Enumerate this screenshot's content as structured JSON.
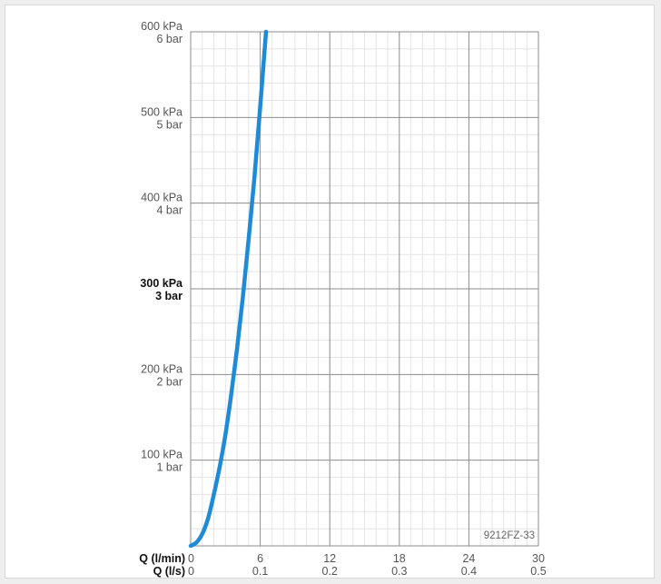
{
  "chart_data": {
    "type": "line",
    "code": "9212FZ-33",
    "y_ticks": [
      {
        "value": 100,
        "kpa": "100 kPa",
        "bar": "1 bar",
        "bold": false
      },
      {
        "value": 200,
        "kpa": "200 kPa",
        "bar": "2 bar",
        "bold": false
      },
      {
        "value": 300,
        "kpa": "300 kPa",
        "bar": "3 bar",
        "bold": true
      },
      {
        "value": 400,
        "kpa": "400 kPa",
        "bar": "4 bar",
        "bold": false
      },
      {
        "value": 500,
        "kpa": "500 kPa",
        "bar": "5 bar",
        "bold": false
      },
      {
        "value": 600,
        "kpa": "600 kPa",
        "bar": "6 bar",
        "bold": false
      }
    ],
    "x_axis_rows": [
      {
        "title": "Q (l/min)",
        "ticks": [
          {
            "value": 0,
            "label": "0"
          },
          {
            "value": 6,
            "label": "6"
          },
          {
            "value": 12,
            "label": "12"
          },
          {
            "value": 18,
            "label": "18"
          },
          {
            "value": 24,
            "label": "24"
          },
          {
            "value": 30,
            "label": "30"
          }
        ]
      },
      {
        "title": "Q (l/s)",
        "ticks": [
          {
            "value": 0,
            "label": "0"
          },
          {
            "value": 6,
            "label": "0.1"
          },
          {
            "value": 12,
            "label": "0.2"
          },
          {
            "value": 18,
            "label": "0.3"
          },
          {
            "value": 24,
            "label": "0.4"
          },
          {
            "value": 30,
            "label": "0.5"
          }
        ]
      }
    ],
    "xlim": [
      0,
      30
    ],
    "ylim": [
      0,
      600
    ],
    "grid": true,
    "series": [
      {
        "color": "#1f8ad6",
        "points": [
          [
            0,
            0
          ],
          [
            0.5,
            4
          ],
          [
            1,
            14
          ],
          [
            1.5,
            32
          ],
          [
            2,
            60
          ],
          [
            2.5,
            92
          ],
          [
            3,
            130
          ],
          [
            3.5,
            177
          ],
          [
            4,
            230
          ],
          [
            4.5,
            290
          ],
          [
            5,
            358
          ],
          [
            5.5,
            430
          ],
          [
            6,
            513
          ],
          [
            6.5,
            600
          ]
        ]
      }
    ]
  }
}
